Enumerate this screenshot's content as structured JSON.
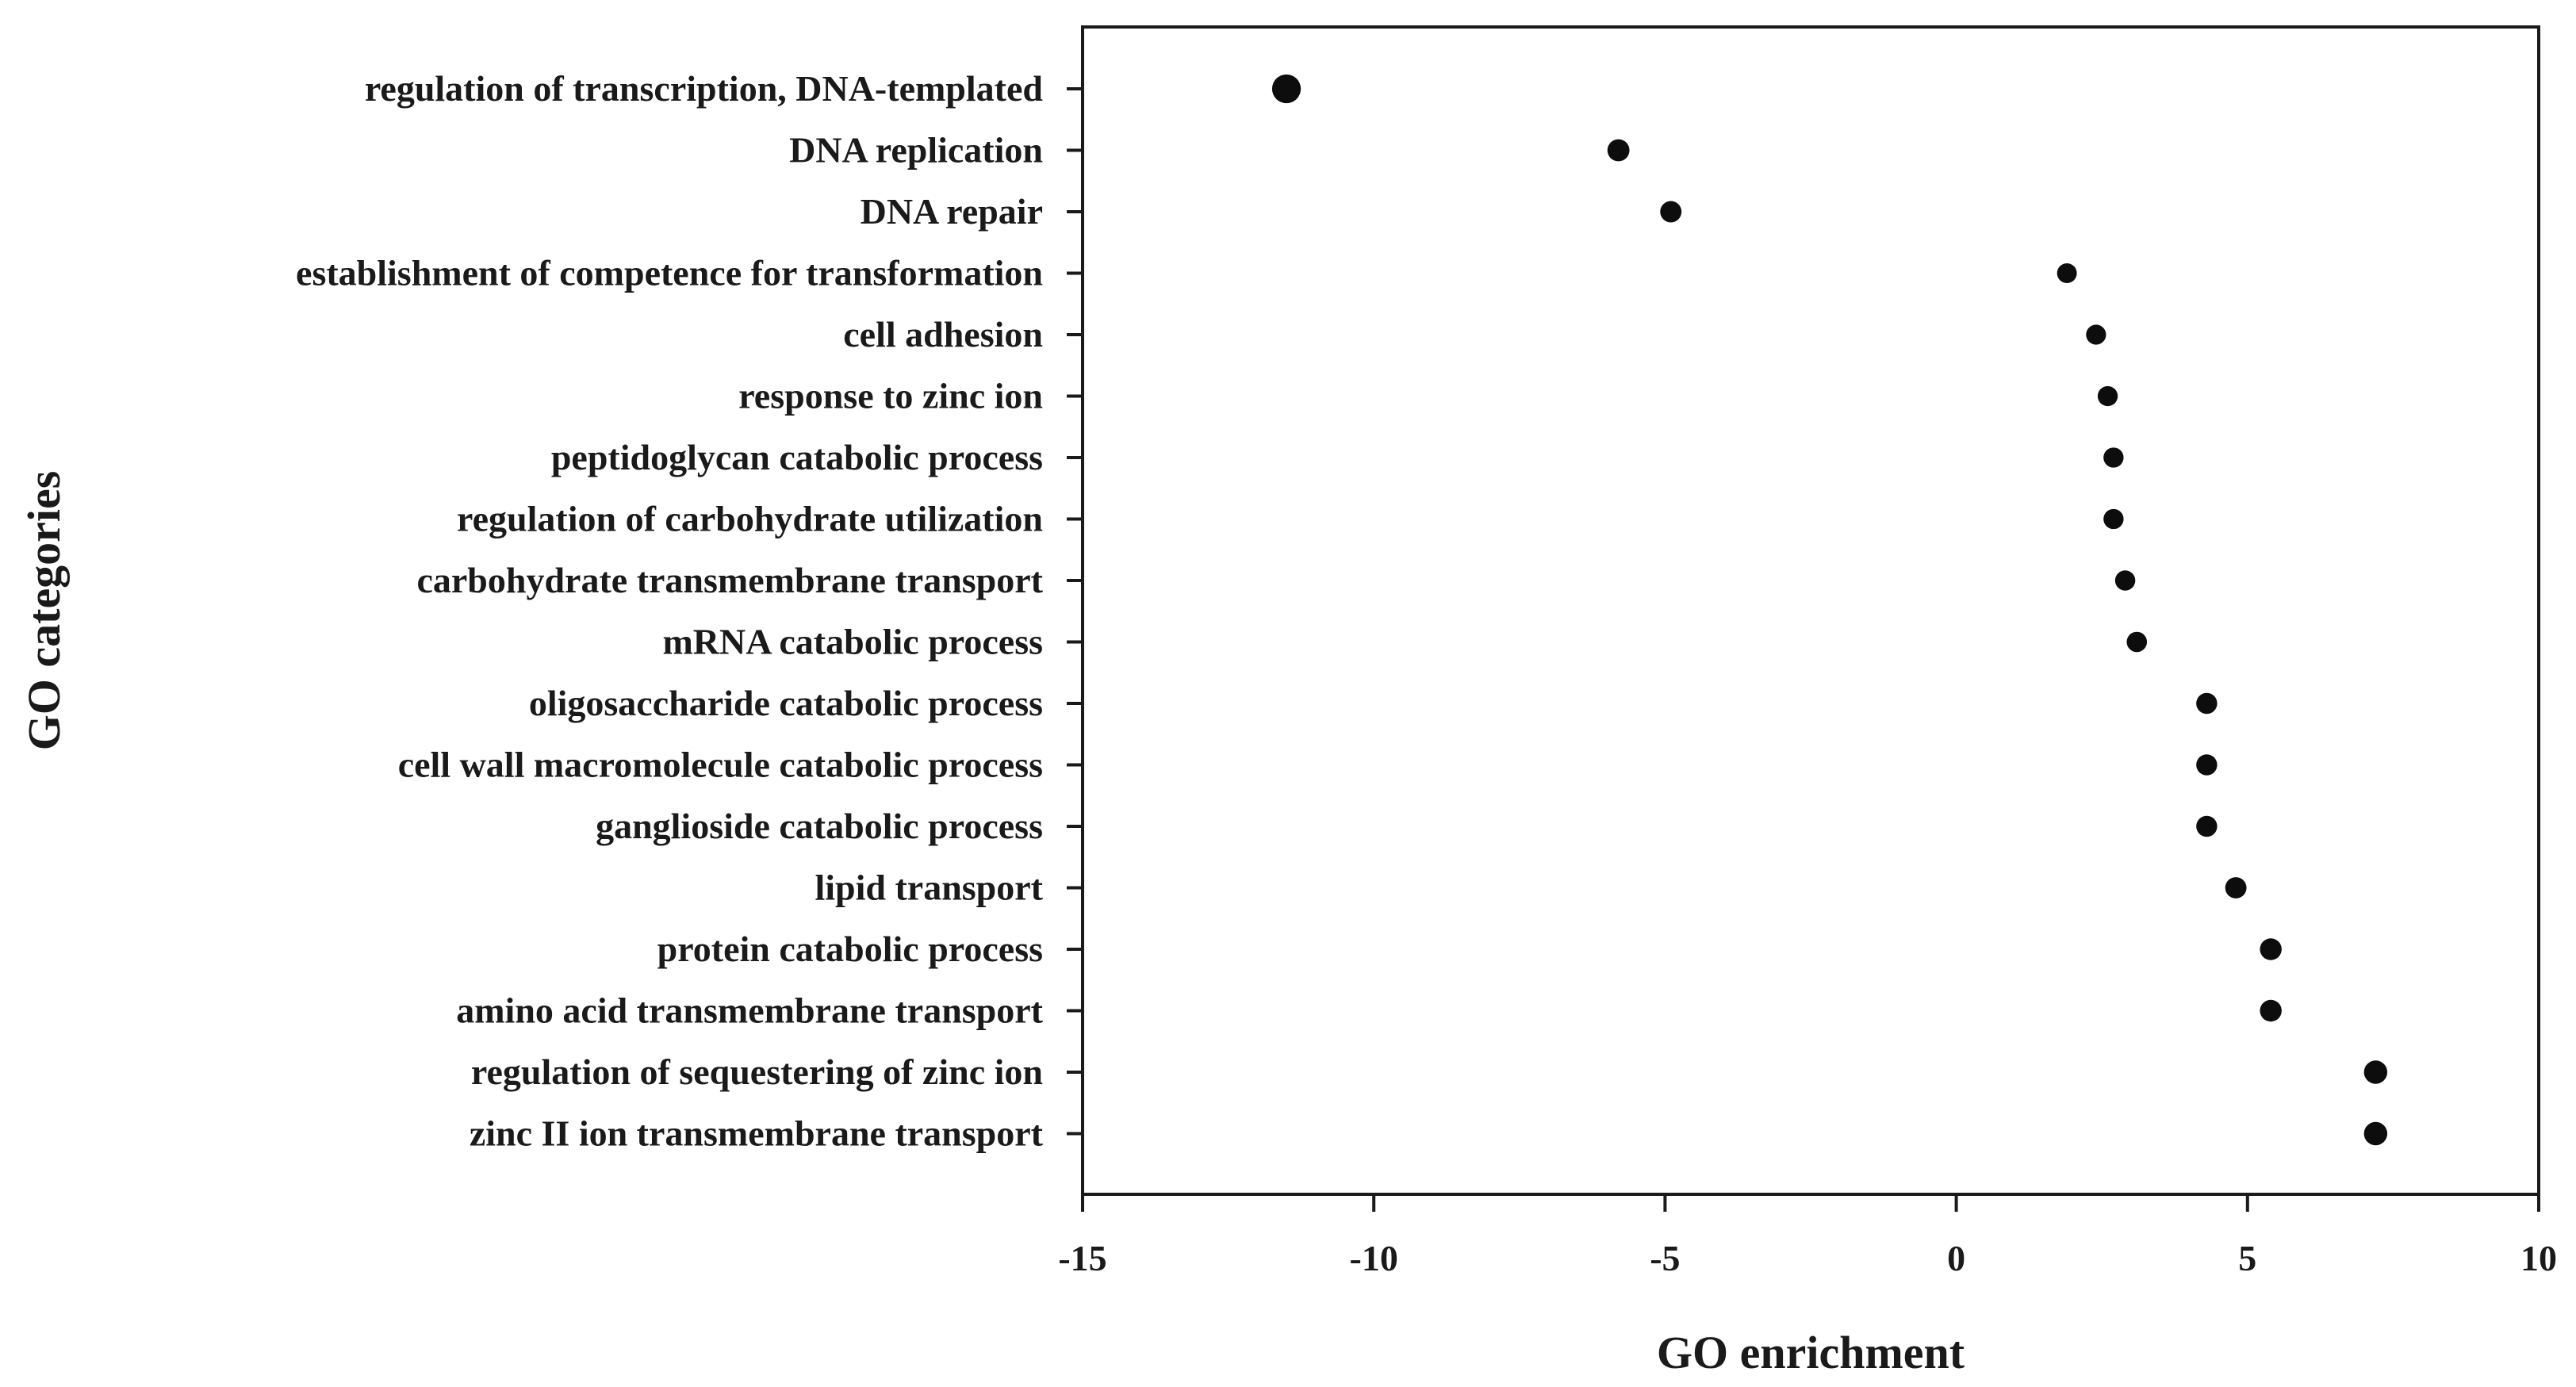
{
  "chart_data": {
    "type": "scatter",
    "title": "",
    "xlabel": "GO enrichment",
    "ylabel": "GO categories",
    "xlim": [
      -15,
      10
    ],
    "xticks": [
      -15,
      -10,
      -5,
      0,
      5,
      10
    ],
    "xtick_labels": [
      "-15",
      "-10",
      "-5",
      "0",
      "5",
      "10"
    ],
    "grid": false,
    "legend": "none",
    "categories": [
      "regulation of transcription, DNA-templated",
      "DNA replication",
      "DNA repair",
      "establishment of competence for transformation",
      "cell adhesion",
      "response to zinc ion",
      "peptidoglycan catabolic process",
      "regulation of carbohydrate utilization",
      "carbohydrate transmembrane transport",
      "mRNA catabolic process",
      "oligosaccharide catabolic process",
      "cell wall macromolecule catabolic process",
      "ganglioside catabolic process",
      "lipid transport",
      "protein catabolic process",
      "amino acid transmembrane transport",
      "regulation of sequestering of zinc ion",
      "zinc II ion transmembrane transport"
    ],
    "values": [
      -11.5,
      -5.8,
      -4.9,
      1.9,
      2.4,
      2.6,
      2.7,
      2.7,
      2.9,
      3.1,
      4.3,
      4.3,
      4.3,
      4.8,
      5.4,
      5.4,
      7.2,
      7.2
    ],
    "size_by": "absolute enrichment"
  },
  "colors": {
    "marker": "#0d0d0d",
    "axis": "#1a1a1a",
    "background": "#ffffff"
  }
}
